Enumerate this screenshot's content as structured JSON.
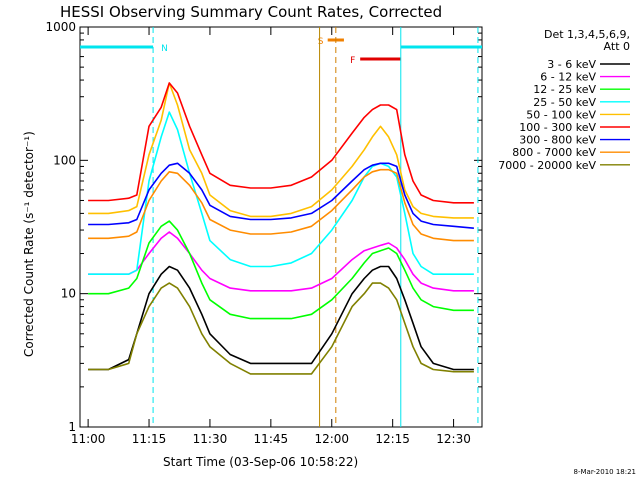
{
  "chart_data": {
    "type": "line",
    "title": "HESSI Observing Summary Count Rates, Corrected",
    "xlabel": "Start Time (03-Sep-06 10:58:22)",
    "ylabel": "Corrected Count Rate (s⁻¹ detector⁻¹)",
    "y_scale": "log",
    "ylim": [
      1,
      1000
    ],
    "xlim_minutes_label_range": [
      "10:58",
      "12:37"
    ],
    "x_ticks": [
      "11:00",
      "11:15",
      "11:30",
      "11:45",
      "12:00",
      "12:15",
      "12:30"
    ],
    "y_ticks": [
      "1",
      "10",
      "100",
      "1000"
    ],
    "legend_header": [
      "Det 1,3,4,5,6,9,",
      "Att 0"
    ],
    "legend_placement": "right",
    "footer_date": "8-Mar-2010 18:21",
    "flags": [
      {
        "label": "N",
        "color": "#00e5ee",
        "start": "10:58",
        "end": "11:16"
      },
      {
        "label": "N",
        "color": "#00e5ee",
        "start": "12:17",
        "end": "12:37"
      },
      {
        "label": "S",
        "color": "#f08000",
        "start": "11:59",
        "end": "12:03"
      },
      {
        "label": "F",
        "color": "#e00000",
        "start": "12:07",
        "end": "12:17"
      }
    ],
    "vlines": [
      {
        "time": "11:16",
        "color": "#00e5ee",
        "style": "dashed"
      },
      {
        "time": "11:57",
        "color": "#b88600",
        "style": "solid"
      },
      {
        "time": "12:01",
        "color": "#d08000",
        "style": "dashed"
      },
      {
        "time": "12:17",
        "color": "#00e5ee",
        "style": "solid"
      },
      {
        "time": "12:36",
        "color": "#00e5ee",
        "style": "dashed"
      }
    ],
    "x_times": [
      "11:00",
      "11:05",
      "11:10",
      "11:12",
      "11:15",
      "11:18",
      "11:20",
      "11:22",
      "11:25",
      "11:28",
      "11:30",
      "11:35",
      "11:40",
      "11:45",
      "11:50",
      "11:55",
      "12:00",
      "12:05",
      "12:08",
      "12:10",
      "12:12",
      "12:14",
      "12:16",
      "12:18",
      "12:20",
      "12:22",
      "12:25",
      "12:30",
      "12:35"
    ],
    "series": [
      {
        "name": "3 - 6 keV",
        "color": "#000000",
        "values": [
          2.7,
          2.7,
          3.2,
          5,
          10,
          14,
          16,
          15,
          11,
          7,
          5,
          3.5,
          3,
          3,
          3,
          3,
          5,
          10,
          13,
          15,
          16,
          16,
          13,
          9,
          6,
          4,
          3,
          2.7,
          2.7
        ]
      },
      {
        "name": "6 - 12 keV",
        "color": "#ff00ff",
        "values": [
          14,
          14,
          14,
          15,
          20,
          26,
          29,
          26,
          20,
          15,
          13,
          11,
          10.5,
          10.5,
          10.5,
          11,
          13,
          18,
          21,
          22,
          23,
          24,
          22,
          18,
          14,
          12,
          11,
          10.5,
          10.5
        ]
      },
      {
        "name": "12 - 25 keV",
        "color": "#00ff00",
        "values": [
          10,
          10,
          11,
          13,
          24,
          32,
          35,
          30,
          20,
          12,
          9,
          7,
          6.5,
          6.5,
          6.5,
          7,
          9,
          13,
          17,
          20,
          21,
          22,
          20,
          15,
          11,
          9,
          8,
          7.5,
          7.5
        ]
      },
      {
        "name": "25 - 50 keV",
        "color": "#00ffff",
        "values": [
          14,
          14,
          14,
          15,
          70,
          150,
          230,
          170,
          80,
          40,
          25,
          18,
          16,
          16,
          17,
          20,
          30,
          50,
          75,
          90,
          95,
          90,
          75,
          40,
          20,
          16,
          14,
          14,
          14
        ]
      },
      {
        "name": "50 - 100 keV",
        "color": "#ffc000",
        "values": [
          40,
          40,
          42,
          45,
          110,
          200,
          380,
          260,
          120,
          80,
          55,
          42,
          38,
          38,
          40,
          45,
          60,
          90,
          120,
          150,
          180,
          150,
          110,
          60,
          45,
          40,
          38,
          37,
          37
        ]
      },
      {
        "name": "100 - 300 keV",
        "color": "#ff0000",
        "values": [
          50,
          50,
          52,
          55,
          180,
          250,
          380,
          320,
          180,
          110,
          80,
          65,
          62,
          62,
          65,
          75,
          100,
          160,
          210,
          240,
          260,
          260,
          240,
          110,
          70,
          55,
          50,
          48,
          48
        ]
      },
      {
        "name": "300 - 800 keV",
        "color": "#0000ff",
        "values": [
          33,
          33,
          34,
          36,
          60,
          80,
          92,
          95,
          80,
          60,
          46,
          38,
          36,
          36,
          37,
          40,
          50,
          70,
          85,
          92,
          95,
          95,
          90,
          55,
          40,
          35,
          33,
          32,
          31
        ]
      },
      {
        "name": "800 - 7000 keV",
        "color": "#ff8c00",
        "values": [
          26,
          26,
          27,
          29,
          50,
          70,
          82,
          80,
          65,
          48,
          36,
          30,
          28,
          28,
          29,
          32,
          42,
          60,
          75,
          82,
          85,
          85,
          80,
          48,
          33,
          28,
          26,
          25,
          25
        ]
      },
      {
        "name": "7000 - 20000 keV",
        "color": "#808000",
        "values": [
          2.7,
          2.7,
          3,
          5,
          8,
          11,
          12,
          11,
          8,
          5,
          4,
          3,
          2.5,
          2.5,
          2.5,
          2.5,
          4,
          8,
          10,
          12,
          12,
          11,
          9,
          6,
          4,
          3,
          2.7,
          2.6,
          2.6
        ]
      }
    ]
  }
}
